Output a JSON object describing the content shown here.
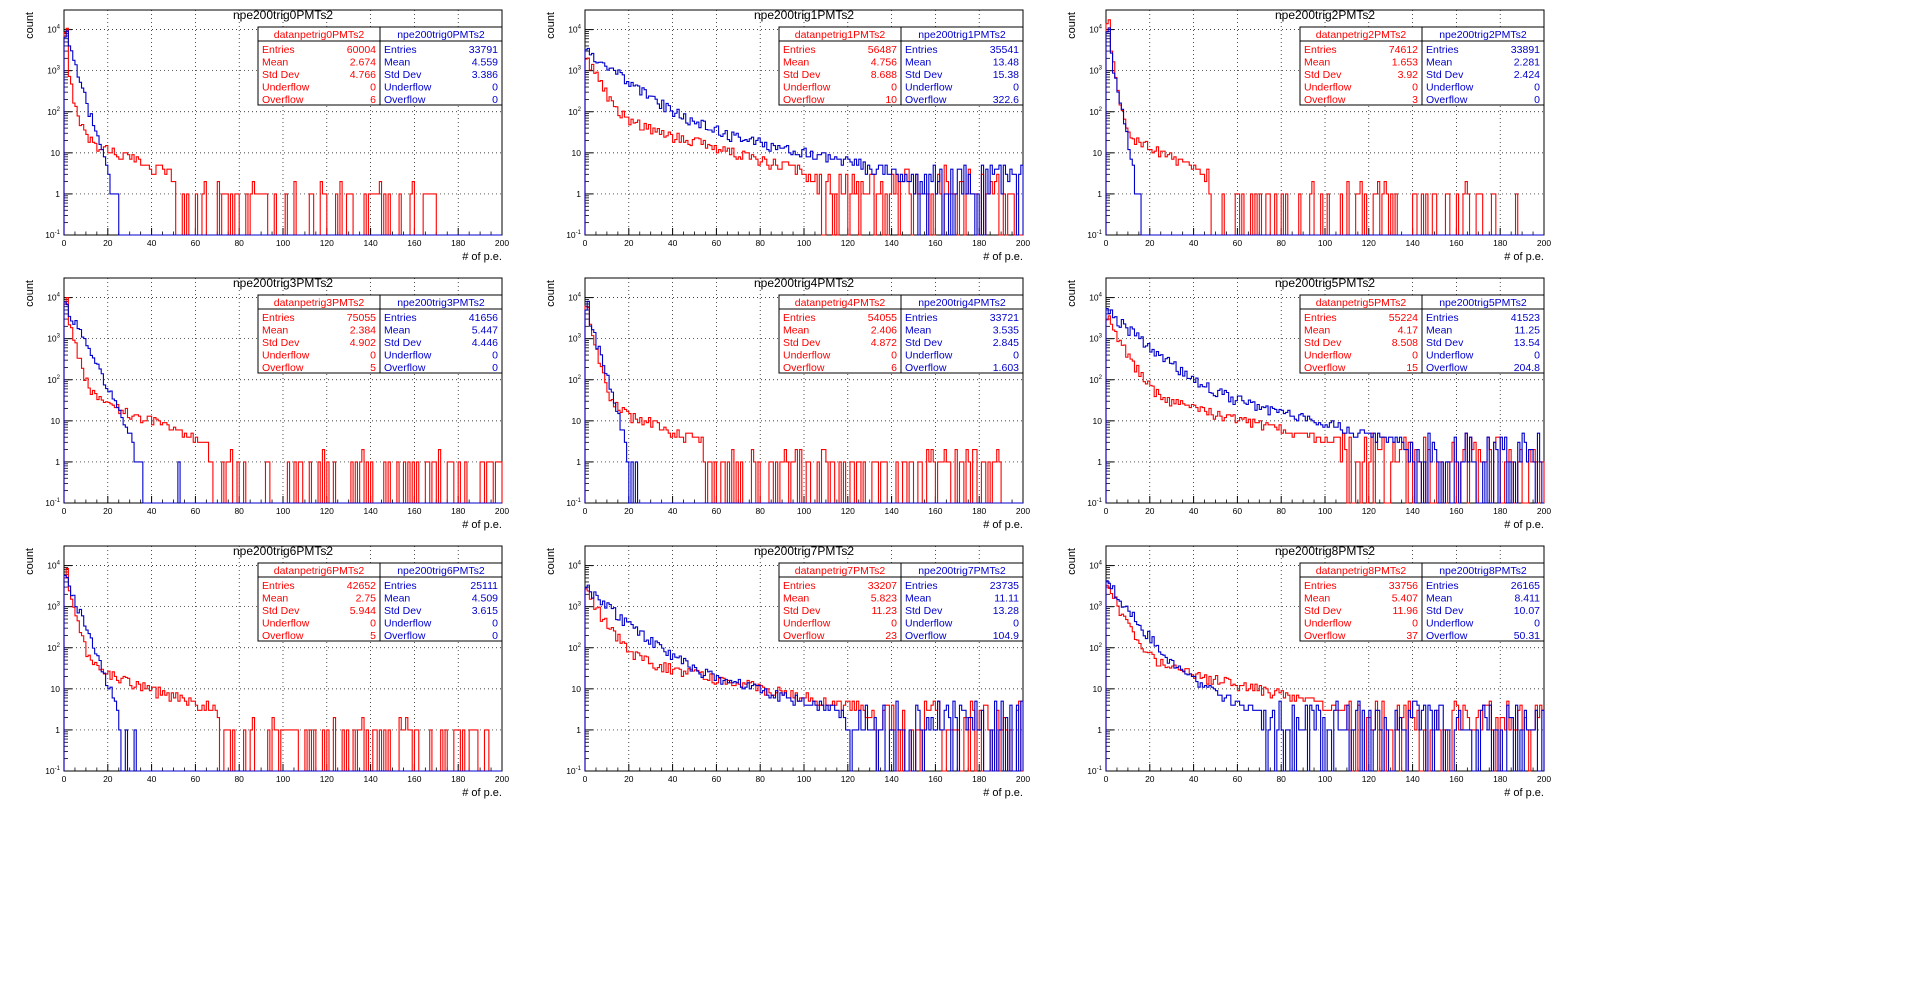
{
  "figure": {
    "xlabel": "# of p.e.",
    "ylabel": "count"
  },
  "colors": {
    "data": "#ff0000",
    "mc": "#0000cc",
    "axis": "#000000",
    "grid": "#000000"
  },
  "stat_labels": [
    "Entries",
    "Mean",
    "Std Dev",
    "Underflow",
    "Overflow"
  ],
  "chart_data": [
    {
      "type": "histogram-step",
      "title": "npe200trig0PMTs2",
      "xlabel": "# of p.e.",
      "ylabel": "count",
      "xlim": [
        0,
        200
      ],
      "ylim": [
        0.1,
        30000
      ],
      "yscale": "log",
      "grid": true,
      "xticks": [
        0,
        20,
        40,
        60,
        80,
        100,
        120,
        140,
        160,
        180,
        200
      ],
      "xtick_labels": [
        "0",
        "20",
        "40",
        "60",
        "80",
        "100",
        "120",
        "140",
        "160",
        "180",
        "200"
      ],
      "yticks": [
        0.1,
        1,
        10,
        100,
        1000,
        10000
      ],
      "ytick_labels": [
        "10^-1",
        "1",
        "10",
        "10^2",
        "10^3",
        "10^4"
      ],
      "legend_position": "top-right",
      "series": [
        {
          "name": "datanpetrig0PMTs2",
          "color": "#ff0000",
          "stats": {
            "Entries": "60004",
            "Mean": "2.674",
            "Std Dev": "4.766",
            "Underflow": "0",
            "Overflow": "6"
          },
          "shape": {
            "peak": 9000,
            "a1": 2500,
            "t1": 1.8,
            "a2": 30,
            "t2": 22,
            "tail": "sparse",
            "end": 170
          },
          "bins": []
        },
        {
          "name": "npe200trig0PMTs2",
          "color": "#0000cc",
          "stats": {
            "Entries": "33791",
            "Mean": "4.559",
            "Std Dev": "3.386",
            "Underflow": "0",
            "Overflow": "0"
          },
          "shape": {
            "peak": 8000,
            "a1": 9000,
            "t1": 2.6,
            "a2": 0,
            "t2": 1,
            "tail": "none",
            "end": 32
          },
          "bins": []
        }
      ]
    },
    {
      "type": "histogram-step",
      "title": "npe200trig1PMTs2",
      "xlabel": "# of p.e.",
      "ylabel": "count",
      "xlim": [
        0,
        200
      ],
      "ylim": [
        0.1,
        30000
      ],
      "yscale": "log",
      "grid": true,
      "xticks": [
        0,
        20,
        40,
        60,
        80,
        100,
        120,
        140,
        160,
        180,
        200
      ],
      "xtick_labels": [
        "0",
        "20",
        "40",
        "60",
        "80",
        "100",
        "120",
        "140",
        "160",
        "180",
        "200"
      ],
      "yticks": [
        0.1,
        1,
        10,
        100,
        1000,
        10000
      ],
      "ytick_labels": [
        "10^-1",
        "1",
        "10",
        "10^2",
        "10^3",
        "10^4"
      ],
      "legend_position": "top-right",
      "series": [
        {
          "name": "datanpetrig1PMTs2",
          "color": "#ff0000",
          "stats": {
            "Entries": "56487",
            "Mean": "4.756",
            "Std Dev": "8.688",
            "Underflow": "0",
            "Overflow": "10"
          },
          "shape": {
            "peak": 2500,
            "a1": 2500,
            "t1": 4,
            "a2": 100,
            "t2": 30,
            "tail": "dense",
            "end": 200
          },
          "bins": []
        },
        {
          "name": "npe200trig1PMTs2",
          "color": "#0000cc",
          "stats": {
            "Entries": "35541",
            "Mean": "13.48",
            "Std Dev": "15.38",
            "Underflow": "0",
            "Overflow": "322.6"
          },
          "shape": {
            "peak": 3500,
            "a1": 3500,
            "t1": 10,
            "a2": 120,
            "t2": 40,
            "tail": "dense",
            "end": 200
          },
          "bins": []
        }
      ]
    },
    {
      "type": "histogram-step",
      "title": "npe200trig2PMTs2",
      "xlabel": "# of p.e.",
      "ylabel": "count",
      "xlim": [
        0,
        200
      ],
      "ylim": [
        0.1,
        30000
      ],
      "yscale": "log",
      "grid": true,
      "xticks": [
        0,
        20,
        40,
        60,
        80,
        100,
        120,
        140,
        160,
        180,
        200
      ],
      "xtick_labels": [
        "0",
        "20",
        "40",
        "60",
        "80",
        "100",
        "120",
        "140",
        "160",
        "180",
        "200"
      ],
      "yticks": [
        0.1,
        1,
        10,
        100,
        1000,
        10000
      ],
      "ytick_labels": [
        "10^-1",
        "1",
        "10",
        "10^2",
        "10^3",
        "10^4"
      ],
      "legend_position": "top-right",
      "series": [
        {
          "name": "datanpetrig2PMTs2",
          "color": "#ff0000",
          "stats": {
            "Entries": "74612",
            "Mean": "1.653",
            "Std Dev": "3.92",
            "Underflow": "0",
            "Overflow": "3"
          },
          "shape": {
            "peak": 15000,
            "a1": 15000,
            "t1": 1.4,
            "a2": 40,
            "t2": 18,
            "tail": "sparse",
            "end": 190
          },
          "bins": []
        },
        {
          "name": "npe200trig2PMTs2",
          "color": "#0000cc",
          "stats": {
            "Entries": "33891",
            "Mean": "2.281",
            "Std Dev": "2.424",
            "Underflow": "0",
            "Overflow": "0"
          },
          "shape": {
            "peak": 10000,
            "a1": 10000,
            "t1": 1.6,
            "a2": 0,
            "t2": 1,
            "tail": "none",
            "end": 20
          },
          "bins": []
        }
      ]
    },
    {
      "type": "histogram-step",
      "title": "npe200trig3PMTs2",
      "xlabel": "# of p.e.",
      "ylabel": "count",
      "xlim": [
        0,
        200
      ],
      "ylim": [
        0.1,
        30000
      ],
      "yscale": "log",
      "grid": true,
      "xticks": [
        0,
        20,
        40,
        60,
        80,
        100,
        120,
        140,
        160,
        180,
        200
      ],
      "xtick_labels": [
        "0",
        "20",
        "40",
        "60",
        "80",
        "100",
        "120",
        "140",
        "160",
        "180",
        "200"
      ],
      "yticks": [
        0.1,
        1,
        10,
        100,
        1000,
        10000
      ],
      "ytick_labels": [
        "10^-1",
        "1",
        "10",
        "10^2",
        "10^3",
        "10^4"
      ],
      "legend_position": "top-right",
      "series": [
        {
          "name": "datanpetrig3PMTs2",
          "color": "#ff0000",
          "stats": {
            "Entries": "75055",
            "Mean": "2.384",
            "Std Dev": "4.902",
            "Underflow": "0",
            "Overflow": "5"
          },
          "shape": {
            "peak": 10000,
            "a1": 10000,
            "t1": 2,
            "a2": 60,
            "t2": 22,
            "tail": "sparse",
            "end": 200
          },
          "bins": []
        },
        {
          "name": "npe200trig3PMTs2",
          "color": "#0000cc",
          "stats": {
            "Entries": "41656",
            "Mean": "5.447",
            "Std Dev": "4.446",
            "Underflow": "0",
            "Overflow": "0"
          },
          "shape": {
            "peak": 9000,
            "a1": 9000,
            "t1": 4,
            "a2": 0,
            "t2": 1,
            "tail": "none",
            "end": 65
          },
          "bins": []
        }
      ]
    },
    {
      "type": "histogram-step",
      "title": "npe200trig4PMTs2",
      "xlabel": "# of p.e.",
      "ylabel": "count",
      "xlim": [
        0,
        200
      ],
      "ylim": [
        0.1,
        30000
      ],
      "yscale": "log",
      "grid": true,
      "xticks": [
        0,
        20,
        40,
        60,
        80,
        100,
        120,
        140,
        160,
        180,
        200
      ],
      "xtick_labels": [
        "0",
        "20",
        "40",
        "60",
        "80",
        "100",
        "120",
        "140",
        "160",
        "180",
        "200"
      ],
      "yticks": [
        0.1,
        1,
        10,
        100,
        1000,
        10000
      ],
      "ytick_labels": [
        "10^-1",
        "1",
        "10",
        "10^2",
        "10^3",
        "10^4"
      ],
      "legend_position": "top-right",
      "series": [
        {
          "name": "datanpetrig4PMTs2",
          "color": "#ff0000",
          "stats": {
            "Entries": "54055",
            "Mean": "2.406",
            "Std Dev": "4.872",
            "Underflow": "0",
            "Overflow": "6"
          },
          "shape": {
            "peak": 8000,
            "a1": 8000,
            "t1": 1.9,
            "a2": 35,
            "t2": 22,
            "tail": "sparse",
            "end": 190
          },
          "bins": []
        },
        {
          "name": "npe200trig4PMTs2",
          "color": "#0000cc",
          "stats": {
            "Entries": "33721",
            "Mean": "3.535",
            "Std Dev": "2.845",
            "Underflow": "0",
            "Overflow": "1.603"
          },
          "shape": {
            "peak": 8000,
            "a1": 8000,
            "t1": 2.4,
            "a2": 0,
            "t2": 1,
            "tail": "none",
            "end": 26
          },
          "bins": []
        }
      ]
    },
    {
      "type": "histogram-step",
      "title": "npe200trig5PMTs2",
      "xlabel": "# of p.e.",
      "ylabel": "count",
      "xlim": [
        0,
        200
      ],
      "ylim": [
        0.1,
        30000
      ],
      "yscale": "log",
      "grid": true,
      "xticks": [
        0,
        20,
        40,
        60,
        80,
        100,
        120,
        140,
        160,
        180,
        200
      ],
      "xtick_labels": [
        "0",
        "20",
        "40",
        "60",
        "80",
        "100",
        "120",
        "140",
        "160",
        "180",
        "200"
      ],
      "yticks": [
        0.1,
        1,
        10,
        100,
        1000,
        10000
      ],
      "ytick_labels": [
        "10^-1",
        "1",
        "10",
        "10^2",
        "10^3",
        "10^4"
      ],
      "legend_position": "top-right",
      "series": [
        {
          "name": "datanpetrig5PMTs2",
          "color": "#ff0000",
          "stats": {
            "Entries": "55224",
            "Mean": "4.17",
            "Std Dev": "8.508",
            "Underflow": "0",
            "Overflow": "15"
          },
          "shape": {
            "peak": 3500,
            "a1": 3500,
            "t1": 4.5,
            "a2": 60,
            "t2": 35,
            "tail": "dense",
            "end": 200
          },
          "bins": []
        },
        {
          "name": "npe200trig5PMTs2",
          "color": "#0000cc",
          "stats": {
            "Entries": "41523",
            "Mean": "11.25",
            "Std Dev": "13.54",
            "Underflow": "0",
            "Overflow": "204.8"
          },
          "shape": {
            "peak": 5000,
            "a1": 5000,
            "t1": 9,
            "a2": 150,
            "t2": 35,
            "tail": "dense",
            "end": 200
          },
          "bins": []
        }
      ]
    },
    {
      "type": "histogram-step",
      "title": "npe200trig6PMTs2",
      "xlabel": "# of p.e.",
      "ylabel": "count",
      "xlim": [
        0,
        200
      ],
      "ylim": [
        0.1,
        30000
      ],
      "yscale": "log",
      "grid": true,
      "xticks": [
        0,
        20,
        40,
        60,
        80,
        100,
        120,
        140,
        160,
        180,
        200
      ],
      "xtick_labels": [
        "0",
        "20",
        "40",
        "60",
        "80",
        "100",
        "120",
        "140",
        "160",
        "180",
        "200"
      ],
      "yticks": [
        0.1,
        1,
        10,
        100,
        1000,
        10000
      ],
      "ytick_labels": [
        "10^-1",
        "1",
        "10",
        "10^2",
        "10^3",
        "10^4"
      ],
      "legend_position": "top-right",
      "series": [
        {
          "name": "datanpetrig6PMTs2",
          "color": "#ff0000",
          "stats": {
            "Entries": "42652",
            "Mean": "2.75",
            "Std Dev": "5.944",
            "Underflow": "0",
            "Overflow": "5"
          },
          "shape": {
            "peak": 7000,
            "a1": 7000,
            "t1": 2.1,
            "a2": 50,
            "t2": 25,
            "tail": "sparse",
            "end": 195
          },
          "bins": []
        },
        {
          "name": "npe200trig6PMTs2",
          "color": "#0000cc",
          "stats": {
            "Entries": "25111",
            "Mean": "4.509",
            "Std Dev": "3.615",
            "Underflow": "0",
            "Overflow": "0"
          },
          "shape": {
            "peak": 7000,
            "a1": 7000,
            "t1": 3.2,
            "a2": 0,
            "t2": 1,
            "tail": "none",
            "end": 55
          },
          "bins": []
        }
      ]
    },
    {
      "type": "histogram-step",
      "title": "npe200trig7PMTs2",
      "xlabel": "# of p.e.",
      "ylabel": "count",
      "xlim": [
        0,
        200
      ],
      "ylim": [
        0.1,
        30000
      ],
      "yscale": "log",
      "grid": true,
      "xticks": [
        0,
        20,
        40,
        60,
        80,
        100,
        120,
        140,
        160,
        180,
        200
      ],
      "xtick_labels": [
        "0",
        "20",
        "40",
        "60",
        "80",
        "100",
        "120",
        "140",
        "160",
        "180",
        "200"
      ],
      "yticks": [
        0.1,
        1,
        10,
        100,
        1000,
        10000
      ],
      "ytick_labels": [
        "10^-1",
        "1",
        "10",
        "10^2",
        "10^3",
        "10^4"
      ],
      "legend_position": "top-right",
      "series": [
        {
          "name": "datanpetrig7PMTs2",
          "color": "#ff0000",
          "stats": {
            "Entries": "33207",
            "Mean": "5.823",
            "Std Dev": "11.23",
            "Underflow": "0",
            "Overflow": "23"
          },
          "shape": {
            "peak": 2500,
            "a1": 2500,
            "t1": 5,
            "a2": 80,
            "t2": 40,
            "tail": "dense",
            "end": 200
          },
          "bins": []
        },
        {
          "name": "npe200trig7PMTs2",
          "color": "#0000cc",
          "stats": {
            "Entries": "23735",
            "Mean": "11.11",
            "Std Dev": "13.28",
            "Underflow": "0",
            "Overflow": "104.9"
          },
          "shape": {
            "peak": 3000,
            "a1": 3000,
            "t1": 9,
            "a2": 90,
            "t2": 35,
            "tail": "dense",
            "end": 200
          },
          "bins": []
        }
      ]
    },
    {
      "type": "histogram-step",
      "title": "npe200trig8PMTs2",
      "xlabel": "# of p.e.",
      "ylabel": "count",
      "xlim": [
        0,
        200
      ],
      "ylim": [
        0.1,
        30000
      ],
      "yscale": "log",
      "grid": true,
      "xticks": [
        0,
        20,
        40,
        60,
        80,
        100,
        120,
        140,
        160,
        180,
        200
      ],
      "xtick_labels": [
        "0",
        "20",
        "40",
        "60",
        "80",
        "100",
        "120",
        "140",
        "160",
        "180",
        "200"
      ],
      "yticks": [
        0.1,
        1,
        10,
        100,
        1000,
        10000
      ],
      "ytick_labels": [
        "10^-1",
        "1",
        "10",
        "10^2",
        "10^3",
        "10^4"
      ],
      "legend_position": "top-right",
      "series": [
        {
          "name": "datanpetrig8PMTs2",
          "color": "#ff0000",
          "stats": {
            "Entries": "33756",
            "Mean": "5.407",
            "Std Dev": "11.96",
            "Underflow": "0",
            "Overflow": "37"
          },
          "shape": {
            "peak": 4000,
            "a1": 4000,
            "t1": 4,
            "a2": 70,
            "t2": 35,
            "tail": "dense",
            "end": 200
          },
          "bins": []
        },
        {
          "name": "npe200trig8PMTs2",
          "color": "#0000cc",
          "stats": {
            "Entries": "26165",
            "Mean": "8.411",
            "Std Dev": "10.07",
            "Underflow": "0",
            "Overflow": "50.31"
          },
          "shape": {
            "peak": 4500,
            "a1": 4500,
            "t1": 6,
            "a2": 50,
            "t2": 25,
            "tail": "dense",
            "end": 200
          },
          "bins": []
        }
      ]
    }
  ]
}
